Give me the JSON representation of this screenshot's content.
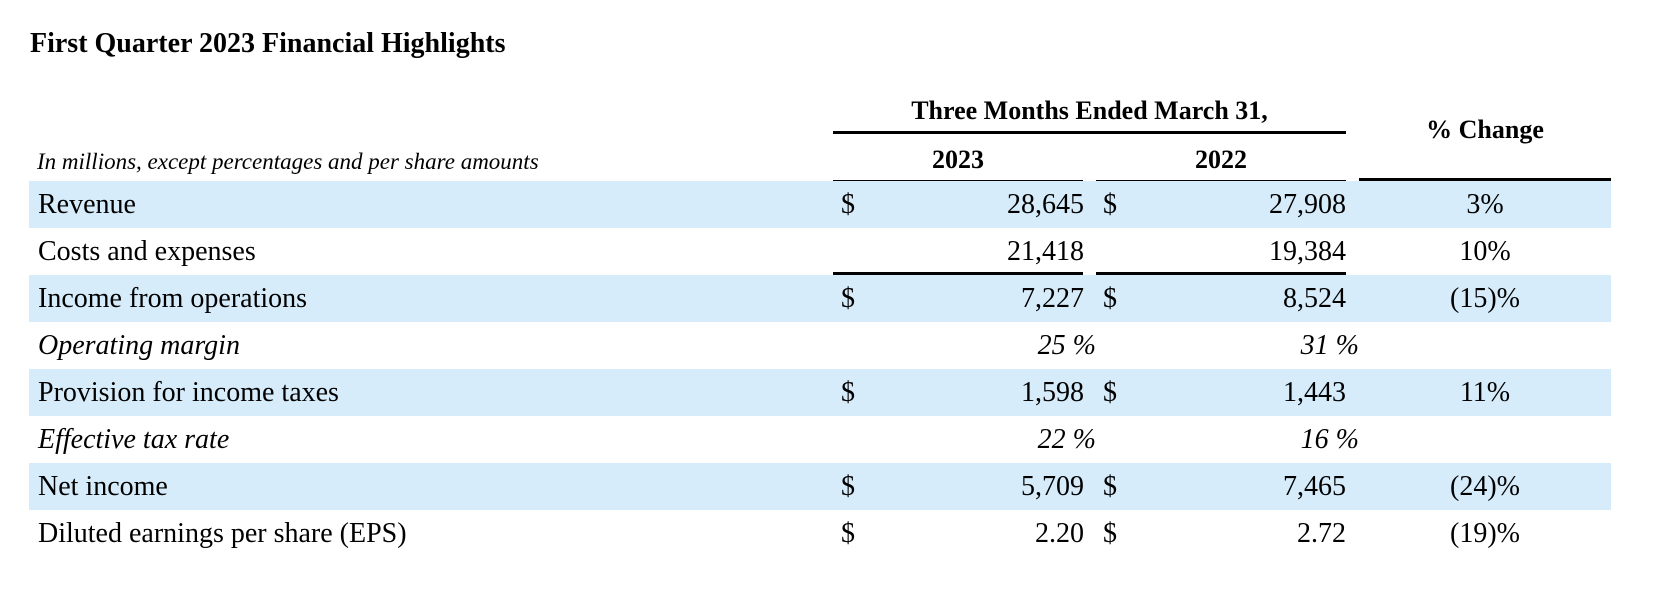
{
  "title": "First Quarter 2023 Financial Highlights",
  "subtitle": "In millions, except percentages and per share amounts",
  "column_group_header": "Three Months Ended March 31,",
  "columns": {
    "year_2023": "2023",
    "year_2022": "2022",
    "change": "% Change"
  },
  "rows": [
    {
      "label": "Revenue",
      "cur_2023": "$",
      "val_2023": "28,645",
      "cur_2022": "$",
      "val_2022": "27,908",
      "change": "3%",
      "shaded": true
    },
    {
      "label": "Costs and expenses",
      "cur_2023": "",
      "val_2023": "21,418",
      "cur_2022": "",
      "val_2022": "19,384",
      "change": "10%",
      "shaded": false
    },
    {
      "label": "Income from operations",
      "cur_2023": "$",
      "val_2023": "7,227",
      "cur_2022": "$",
      "val_2022": "8,524",
      "change": "(15)%",
      "shaded": true
    },
    {
      "label": "Operating margin",
      "pct_2023": "25 %",
      "pct_2022": "31 %",
      "italic": true,
      "shaded": false
    },
    {
      "label": "Provision for income taxes",
      "cur_2023": "$",
      "val_2023": "1,598",
      "cur_2022": "$",
      "val_2022": "1,443",
      "change": "11%",
      "shaded": true
    },
    {
      "label": "Effective tax rate",
      "pct_2023": "22 %",
      "pct_2022": "16 %",
      "italic": true,
      "shaded": false
    },
    {
      "label": "Net income",
      "cur_2023": "$",
      "val_2023": "5,709",
      "cur_2022": "$",
      "val_2022": "7,465",
      "change": "(24)%",
      "shaded": true
    },
    {
      "label": "Diluted earnings per share (EPS)",
      "cur_2023": "$",
      "val_2023": "2.20",
      "cur_2022": "$",
      "val_2022": "2.72",
      "change": "(19)%",
      "shaded": false
    }
  ],
  "colors": {
    "row_shade": "#d6ecfa",
    "text": "#000000",
    "rule": "#000000"
  }
}
